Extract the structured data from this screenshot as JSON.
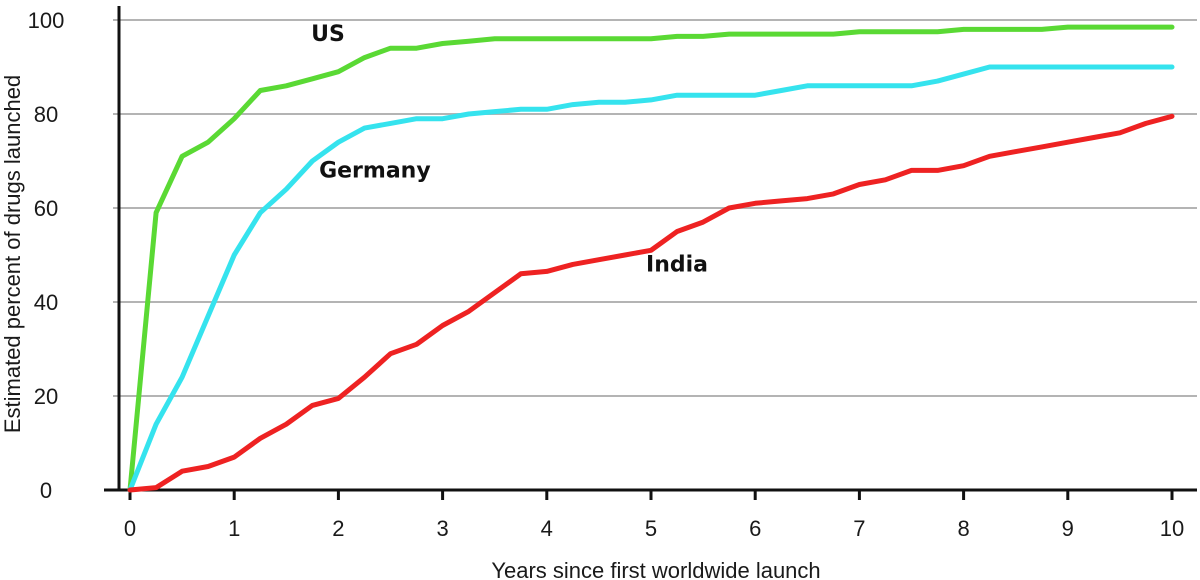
{
  "chart_data": {
    "type": "line",
    "xlabel": "Years since first worldwide launch",
    "ylabel": "Estimated percent of drugs launched",
    "xlim": [
      0,
      10
    ],
    "ylim": [
      0,
      100
    ],
    "xticks": [
      0,
      1,
      2,
      3,
      4,
      5,
      6,
      7,
      8,
      9,
      10
    ],
    "yticks": [
      0,
      20,
      40,
      60,
      80,
      100
    ],
    "grid": "horizontal",
    "legend": "none",
    "series": [
      {
        "name": "US",
        "color": "#5ad934",
        "x": [
          0,
          0.25,
          0.5,
          0.75,
          1,
          1.25,
          1.5,
          1.75,
          2,
          2.25,
          2.5,
          2.75,
          3,
          3.25,
          3.5,
          3.75,
          4,
          4.25,
          4.5,
          4.75,
          5,
          5.25,
          5.5,
          5.75,
          6,
          6.25,
          6.5,
          6.75,
          7,
          7.25,
          7.5,
          7.75,
          8,
          8.25,
          8.5,
          8.75,
          9,
          9.25,
          9.5,
          9.75,
          10
        ],
        "y": [
          0,
          59,
          71,
          74,
          79,
          85,
          86,
          87.5,
          89,
          92,
          94,
          94,
          95,
          95.5,
          96,
          96,
          96,
          96,
          96,
          96,
          96,
          96.5,
          96.5,
          97,
          97,
          97,
          97,
          97,
          97.5,
          97.5,
          97.5,
          97.5,
          98,
          98,
          98,
          98,
          98.5,
          98.5,
          98.5,
          98.5,
          98.5
        ]
      },
      {
        "name": "Germany",
        "color": "#35e3ee",
        "x": [
          0,
          0.25,
          0.5,
          0.75,
          1,
          1.25,
          1.5,
          1.75,
          2,
          2.25,
          2.5,
          2.75,
          3,
          3.25,
          3.5,
          3.75,
          4,
          4.25,
          4.5,
          4.75,
          5,
          5.25,
          5.5,
          5.75,
          6,
          6.25,
          6.5,
          6.75,
          7,
          7.25,
          7.5,
          7.75,
          8,
          8.25,
          8.5,
          8.75,
          9,
          9.25,
          9.5,
          9.75,
          10
        ],
        "y": [
          0,
          14,
          24,
          37,
          50,
          59,
          64,
          70,
          74,
          77,
          78,
          79,
          79,
          80,
          80.5,
          81,
          81,
          82,
          82.5,
          82.5,
          83,
          84,
          84,
          84,
          84,
          85,
          86,
          86,
          86,
          86,
          86,
          87,
          88.5,
          90,
          90,
          90,
          90,
          90,
          90,
          90,
          90
        ]
      },
      {
        "name": "India",
        "color": "#ee2222",
        "x": [
          0,
          0.25,
          0.5,
          0.75,
          1,
          1.25,
          1.5,
          1.75,
          2,
          2.25,
          2.5,
          2.75,
          3,
          3.25,
          3.5,
          3.75,
          4,
          4.25,
          4.5,
          4.75,
          5,
          5.25,
          5.5,
          5.75,
          6,
          6.25,
          6.5,
          6.75,
          7,
          7.25,
          7.5,
          7.75,
          8,
          8.25,
          8.5,
          8.75,
          9,
          9.25,
          9.5,
          9.75,
          10
        ],
        "y": [
          0,
          0.5,
          4,
          5,
          7,
          11,
          14,
          18,
          19.5,
          24,
          29,
          31,
          35,
          38,
          42,
          46,
          46.5,
          48,
          49,
          50,
          51,
          55,
          57,
          60,
          61,
          61.5,
          62,
          63,
          65,
          66,
          68,
          68,
          69,
          71,
          72,
          73,
          74,
          75,
          76,
          78,
          79.5
        ]
      }
    ],
    "annotations": [
      {
        "text": "US",
        "x": 1.9,
        "y": 95.5
      },
      {
        "text": "Germany",
        "x": 2.35,
        "y": 66.5
      },
      {
        "text": "India",
        "x": 5.25,
        "y": 46.5
      }
    ]
  }
}
